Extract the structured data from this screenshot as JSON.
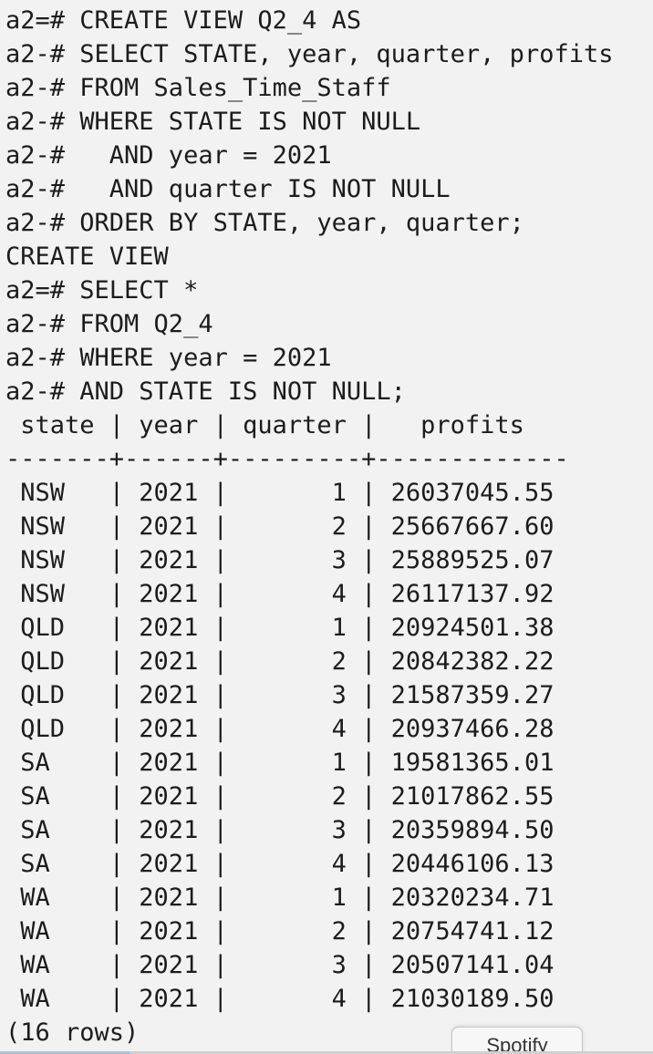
{
  "terminal": {
    "lines": [
      "a2=# CREATE VIEW Q2_4 AS",
      "a2-# SELECT STATE, year, quarter, profits",
      "a2-# FROM Sales_Time_Staff",
      "a2-# WHERE STATE IS NOT NULL",
      "a2-#   AND year = 2021",
      "a2-#   AND quarter IS NOT NULL",
      "a2-# ORDER BY STATE, year, quarter;",
      "CREATE VIEW",
      "a2=# SELECT *",
      "a2-# FROM Q2_4",
      "a2-# WHERE year = 2021",
      "a2-# AND STATE IS NOT NULL;",
      " state | year | quarter |   profits",
      "-------+------+---------+-------------",
      " NSW   | 2021 |       1 | 26037045.55",
      " NSW   | 2021 |       2 | 25667667.60",
      " NSW   | 2021 |       3 | 25889525.07",
      " NSW   | 2021 |       4 | 26117137.92",
      " QLD   | 2021 |       1 | 20924501.38",
      " QLD   | 2021 |       2 | 20842382.22",
      " QLD   | 2021 |       3 | 21587359.27",
      " QLD   | 2021 |       4 | 20937466.28",
      " SA    | 2021 |       1 | 19581365.01",
      " SA    | 2021 |       2 | 21017862.55",
      " SA    | 2021 |       3 | 20359894.50",
      " SA    | 2021 |       4 | 20446106.13",
      " WA    | 2021 |       1 | 20320234.71",
      " WA    | 2021 |       2 | 20754741.12",
      " WA    | 2021 |       3 | 20507141.04",
      " WA    | 2021 |       4 | 21030189.50",
      "(16 rows)"
    ]
  },
  "dock": {
    "spotify_label": "Spotify"
  }
}
